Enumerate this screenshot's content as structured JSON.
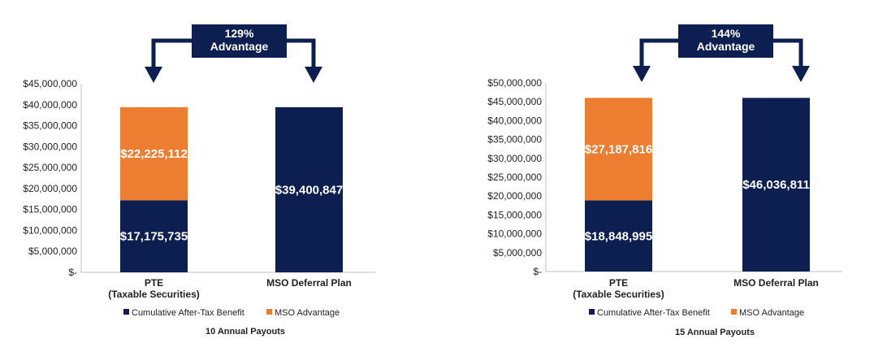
{
  "colors": {
    "navy": "#0c1f50",
    "orange": "#ed7d31",
    "axis": "#bfbfbf"
  },
  "chart_data": [
    {
      "type": "bar",
      "stacked": true,
      "ylim": [
        0,
        45000000
      ],
      "yticks": [
        "$-",
        "$5,000,000",
        "$10,000,000",
        "$15,000,000",
        "$20,000,000",
        "$25,000,000",
        "$30,000,000",
        "$35,000,000",
        "$40,000,000",
        "$45,000,000"
      ],
      "categories": [
        [
          "PTE",
          "(Taxable Securities)"
        ],
        [
          "MSO Deferral Plan"
        ]
      ],
      "series": [
        {
          "name": "Cumulative After-Tax Benefit",
          "color": "navy",
          "values": [
            17175735,
            39400847
          ],
          "labels": [
            "$17,175,735",
            "$39,400,847"
          ]
        },
        {
          "name": "MSO Advantage",
          "color": "orange",
          "values": [
            22225112,
            0
          ],
          "labels": [
            "$22,225,112",
            ""
          ]
        }
      ],
      "annotation": [
        "129%",
        "Advantage"
      ],
      "footnote": "10 Annual Payouts",
      "legend_position": "bottom"
    },
    {
      "type": "bar",
      "stacked": true,
      "ylim": [
        0,
        50000000
      ],
      "yticks": [
        "$-",
        "$5,000,000",
        "$10,000,000",
        "$15,000,000",
        "$20,000,000",
        "$25,000,000",
        "$30,000,000",
        "$35,000,000",
        "$40,000,000",
        "$45,000,000",
        "$50,000,000"
      ],
      "categories": [
        [
          "PTE",
          "(Taxable Securities)"
        ],
        [
          "MSO Deferral Plan"
        ]
      ],
      "series": [
        {
          "name": "Cumulative After-Tax Benefit",
          "color": "navy",
          "values": [
            18848995,
            46036811
          ],
          "labels": [
            "$18,848,995",
            "$46,036,811"
          ]
        },
        {
          "name": "MSO Advantage",
          "color": "orange",
          "values": [
            27187816,
            0
          ],
          "labels": [
            "$27,187,816",
            ""
          ]
        }
      ],
      "annotation": [
        "144%",
        "Advantage"
      ],
      "footnote": "15 Annual Payouts",
      "legend_position": "bottom"
    }
  ]
}
